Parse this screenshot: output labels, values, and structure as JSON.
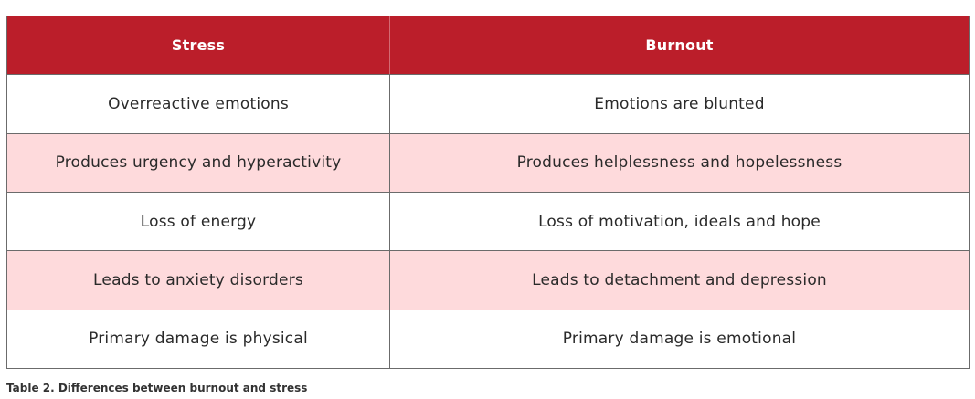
{
  "table": {
    "headers": [
      "Stress",
      "Burnout"
    ],
    "rows": [
      [
        "Overreactive emotions",
        "Emotions are blunted"
      ],
      [
        "Produces urgency and hyperactivity",
        "Produces helplessness and hopelessness"
      ],
      [
        "Loss of energy",
        "Loss of motivation, ideals and hope"
      ],
      [
        "Leads to anxiety disorders",
        "Leads to detachment and depression"
      ],
      [
        "Primary damage is physical",
        "Primary damage is emotional"
      ]
    ],
    "colors": {
      "header_bg": "#bb1e2a",
      "alt_row_bg": "#fedadc",
      "plain_row_bg": "#ffffff"
    }
  },
  "caption": "Table 2. Differences between burnout and stress"
}
